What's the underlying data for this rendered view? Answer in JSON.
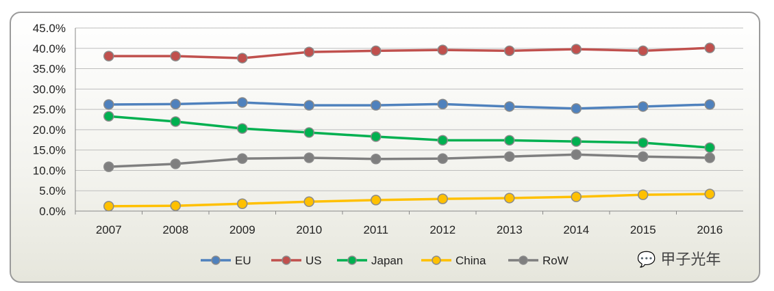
{
  "chart_data": {
    "type": "line",
    "title": "",
    "xlabel": "",
    "ylabel": "",
    "categories": [
      "2007",
      "2008",
      "2009",
      "2010",
      "2011",
      "2012",
      "2013",
      "2014",
      "2015",
      "2016"
    ],
    "ylim": [
      0,
      45
    ],
    "yticks": [
      "0.0%",
      "5.0%",
      "10.0%",
      "15.0%",
      "20.0%",
      "25.0%",
      "30.0%",
      "35.0%",
      "40.0%",
      "45.0%"
    ],
    "grid": true,
    "legend_position": "bottom",
    "series": [
      {
        "name": "EU",
        "color": "#4f81bd",
        "values": [
          26.2,
          26.3,
          26.7,
          26.0,
          26.0,
          26.3,
          25.7,
          25.2,
          25.7,
          26.2
        ]
      },
      {
        "name": "US",
        "color": "#c0504d",
        "values": [
          38.1,
          38.1,
          37.6,
          39.1,
          39.4,
          39.6,
          39.4,
          39.8,
          39.4,
          40.1
        ]
      },
      {
        "name": "Japan",
        "color": "#00b050",
        "values": [
          23.3,
          22.0,
          20.3,
          19.3,
          18.3,
          17.4,
          17.4,
          17.1,
          16.8,
          15.6
        ]
      },
      {
        "name": "China",
        "color": "#ffc000",
        "values": [
          1.2,
          1.3,
          1.8,
          2.3,
          2.7,
          3.0,
          3.2,
          3.5,
          4.0,
          4.2
        ]
      },
      {
        "name": "RoW",
        "color": "#7f7f7f",
        "values": [
          10.9,
          11.6,
          12.9,
          13.1,
          12.8,
          12.9,
          13.4,
          13.9,
          13.4,
          13.1
        ]
      }
    ]
  },
  "watermark": "甲子光年"
}
